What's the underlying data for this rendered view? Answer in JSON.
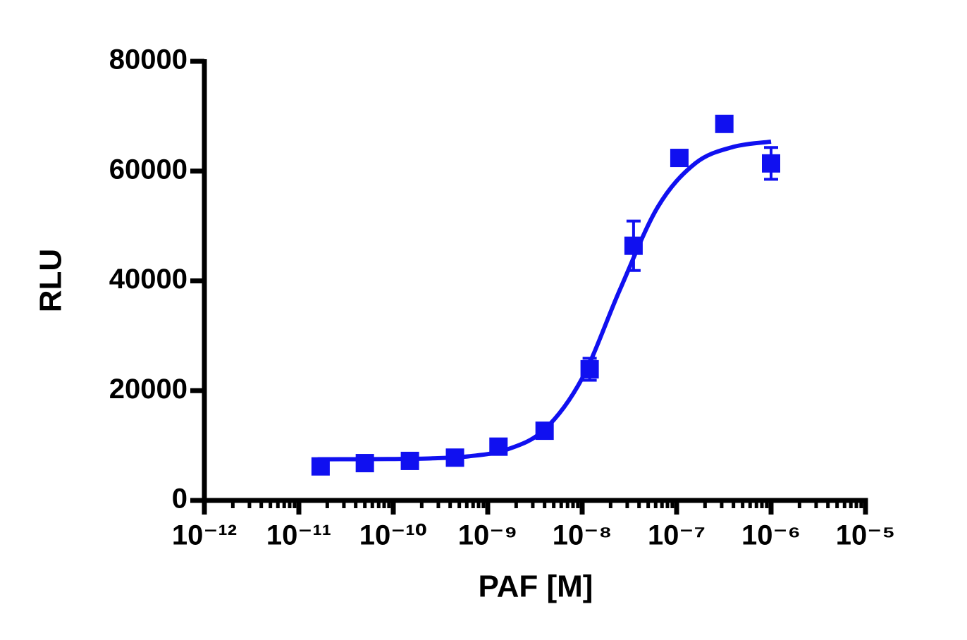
{
  "chart_data": {
    "type": "scatter",
    "x_label": "PAF [M]",
    "y_label": "RLU",
    "xscale": "log",
    "xlim": [
      1e-12,
      1e-05
    ],
    "xticks": [
      {
        "value": 1e-12,
        "label": "10⁻¹²"
      },
      {
        "value": 1e-11,
        "label": "10⁻¹¹"
      },
      {
        "value": 1e-10,
        "label": "10⁻¹⁰"
      },
      {
        "value": 1e-09,
        "label": "10⁻⁹"
      },
      {
        "value": 1e-08,
        "label": "10⁻⁸"
      },
      {
        "value": 1e-07,
        "label": "10⁻⁷"
      },
      {
        "value": 1e-06,
        "label": "10⁻⁶"
      },
      {
        "value": 1e-05,
        "label": "10⁻⁵"
      }
    ],
    "minor_ticks": true,
    "ylim": [
      0,
      80000
    ],
    "yticks": [
      0,
      20000,
      40000,
      60000,
      80000
    ],
    "series": [
      {
        "color": "#1010f0",
        "x": [
          1.7e-11,
          5e-11,
          1.5e-10,
          4.5e-10,
          1.3e-09,
          4e-09,
          1.2e-08,
          3.5e-08,
          1.07e-07,
          3.2e-07,
          1e-06
        ],
        "values": [
          6200,
          6800,
          7200,
          7800,
          9800,
          12700,
          23900,
          46400,
          62400,
          68600,
          61400
        ],
        "errors": [
          500,
          500,
          500,
          500,
          700,
          800,
          2000,
          4500,
          800,
          1000,
          2900
        ]
      }
    ],
    "curve": {
      "color": "#1010f0",
      "x": [
        1.58e-11,
        3.98e-11,
        1e-10,
        2.51e-10,
        6.31e-10,
        1.58e-09,
        3.98e-09,
        1e-08,
        2.51e-08,
        6.31e-08,
        1.58e-07,
        3.98e-07,
        1e-06
      ],
      "values": [
        7500,
        7515,
        7550,
        7660,
        8040,
        9250,
        12900,
        22260,
        38400,
        53440,
        61430,
        64410,
        65370
      ]
    }
  }
}
